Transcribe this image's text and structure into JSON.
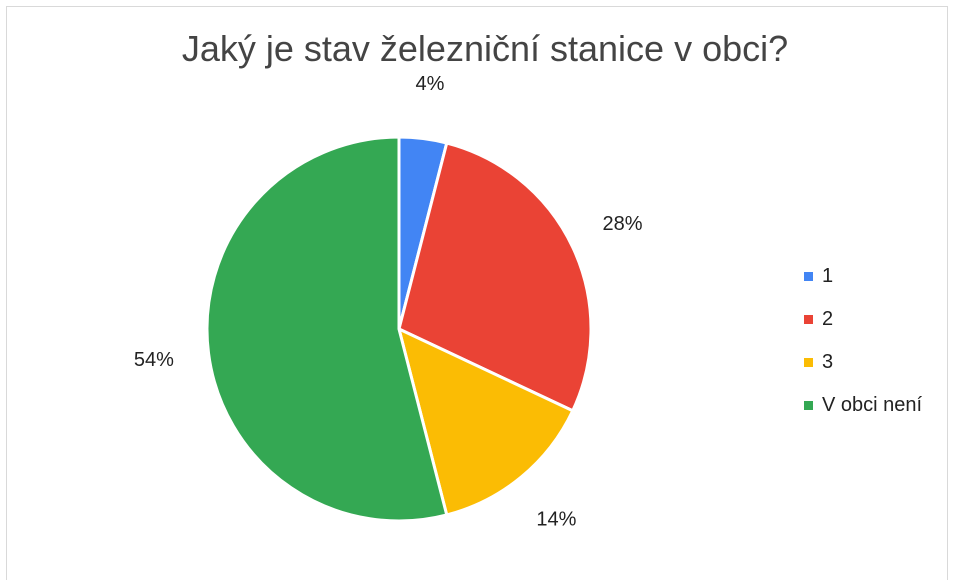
{
  "chart_data": {
    "type": "pie",
    "title": "Jaký je stav železniční stanice v obci?",
    "categories": [
      "1",
      "2",
      "3",
      "V obci není"
    ],
    "values": [
      4,
      28,
      14,
      54
    ],
    "data_labels": [
      "4%",
      "28%",
      "14%",
      "54%"
    ],
    "colors": [
      "#4285f4",
      "#ea4335",
      "#fbbc04",
      "#34a853"
    ],
    "legend_position": "right"
  }
}
